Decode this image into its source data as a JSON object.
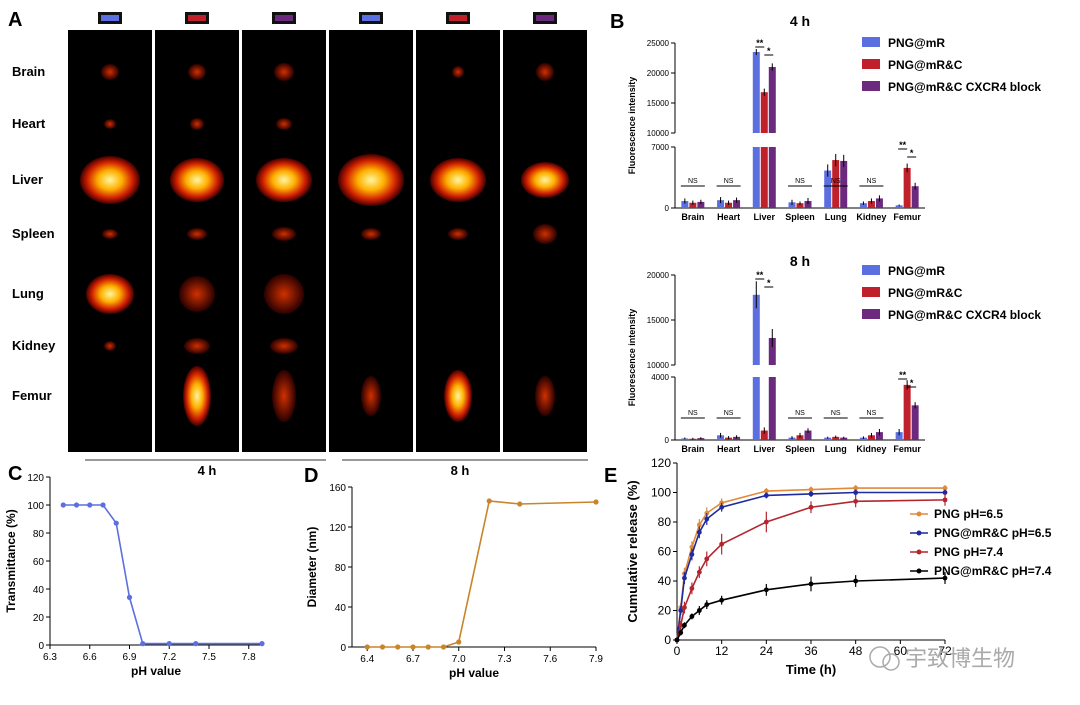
{
  "panel_letters": {
    "a": "A",
    "b": "B",
    "c": "C",
    "d": "D",
    "e": "E"
  },
  "organs": [
    "Brain",
    "Heart",
    "Liver",
    "Spleen",
    "Lung",
    "Kidney",
    "Femur"
  ],
  "colors": {
    "blue": "#5b6fe0",
    "red": "#c0202a",
    "purple": "#6b2a7d",
    "orange": "#e08a3a",
    "navy": "#1f2a9e",
    "darkred": "#b3262e",
    "black": "#000000",
    "lineC": "#5b6fe0",
    "lineD": "#c8852a"
  },
  "panel_a": {
    "timepoints": [
      "4 h",
      "8 h"
    ],
    "column_markers": [
      "blue",
      "red",
      "purple",
      "blue",
      "red",
      "purple"
    ]
  },
  "watermark": {
    "text": "宇致博生物"
  },
  "chart_data": [
    {
      "id": "B-4h",
      "type": "bar",
      "title": "4 h",
      "ylabel": "Fluorescence intensity",
      "categories": [
        "Brain",
        "Heart",
        "Liver",
        "Spleen",
        "Lung",
        "Kidney",
        "Femur"
      ],
      "broken_axis": {
        "lower": [
          0,
          7000
        ],
        "upper": [
          10000,
          25000
        ]
      },
      "yticks_lower": [
        "0",
        "7000"
      ],
      "yticks_upper": [
        "10000",
        "15000",
        "20000",
        "25000"
      ],
      "series": [
        {
          "name": "PNG@mR",
          "color": "#5b6fe0",
          "values": [
            800,
            900,
            23500,
            650,
            4300,
            550,
            300
          ],
          "errors": [
            300,
            350,
            500,
            300,
            700,
            200,
            100
          ]
        },
        {
          "name": "PNG@mR&C",
          "color": "#c0202a",
          "values": [
            600,
            600,
            16800,
            550,
            5500,
            800,
            4600
          ],
          "errors": [
            250,
            250,
            600,
            200,
            700,
            300,
            500
          ]
        },
        {
          "name": "PNG@mR&C CXCR4 block",
          "color": "#6b2a7d",
          "values": [
            700,
            900,
            21000,
            800,
            5400,
            1100,
            2500
          ],
          "errors": [
            250,
            300,
            600,
            350,
            700,
            350,
            400
          ]
        }
      ],
      "significance": [
        {
          "group": "Brain",
          "label": "NS"
        },
        {
          "group": "Heart",
          "label": "NS"
        },
        {
          "group": "Liver",
          "label": "**"
        },
        {
          "group": "Liver",
          "label": "*"
        },
        {
          "group": "Spleen",
          "label": "NS"
        },
        {
          "group": "Lung",
          "label": "NS"
        },
        {
          "group": "Kidney",
          "label": "NS"
        },
        {
          "group": "Femur",
          "label": "**"
        },
        {
          "group": "Femur",
          "label": "*"
        }
      ]
    },
    {
      "id": "B-8h",
      "type": "bar",
      "title": "8 h",
      "ylabel": "Fluorescence intensity",
      "categories": [
        "Brain",
        "Heart",
        "Liver",
        "Spleen",
        "Lung",
        "Kidney",
        "Femur"
      ],
      "broken_axis": {
        "lower": [
          0,
          4000
        ],
        "upper": [
          10000,
          20000
        ]
      },
      "yticks_lower": [
        "0",
        "4000"
      ],
      "yticks_upper": [
        "10000",
        "15000",
        "20000"
      ],
      "series": [
        {
          "name": "PNG@mR",
          "color": "#5b6fe0",
          "values": [
            100,
            300,
            17800,
            150,
            150,
            150,
            500
          ],
          "errors": [
            60,
            150,
            1500,
            100,
            60,
            80,
            200
          ]
        },
        {
          "name": "PNG@mR&C",
          "color": "#c0202a",
          "values": [
            80,
            150,
            600,
            300,
            200,
            300,
            3500
          ],
          "errors": [
            60,
            100,
            200,
            150,
            80,
            150,
            300
          ]
        },
        {
          "name": "PNG@mR&C CXCR4 block",
          "color": "#6b2a7d",
          "values": [
            120,
            200,
            13000,
            600,
            150,
            500,
            2200
          ],
          "errors": [
            60,
            100,
            1000,
            150,
            60,
            200,
            200
          ]
        }
      ],
      "significance": [
        {
          "group": "Brain",
          "label": "NS"
        },
        {
          "group": "Heart",
          "label": "NS"
        },
        {
          "group": "Liver",
          "label": "**"
        },
        {
          "group": "Liver",
          "label": "*"
        },
        {
          "group": "Spleen",
          "label": "NS"
        },
        {
          "group": "Lung",
          "label": "NS"
        },
        {
          "group": "Kidney",
          "label": "NS"
        },
        {
          "group": "Femur",
          "label": "**"
        },
        {
          "group": "Femur",
          "label": "*"
        }
      ]
    },
    {
      "id": "C",
      "type": "line",
      "xlabel": "pH value",
      "ylabel": "Transmittance (%)",
      "xlim": [
        6.3,
        7.9
      ],
      "ylim": [
        0,
        120
      ],
      "xticks": [
        "6.3",
        "6.6",
        "6.9",
        "7.2",
        "7.5",
        "7.8"
      ],
      "yticks": [
        "0",
        "20",
        "40",
        "60",
        "80",
        "100",
        "120"
      ],
      "series": [
        {
          "color": "#5b6fe0",
          "x": [
            6.4,
            6.5,
            6.6,
            6.7,
            6.8,
            6.9,
            7.0,
            7.2,
            7.4,
            7.9
          ],
          "y": [
            100,
            100,
            100,
            100,
            87,
            34,
            1,
            1,
            1,
            1
          ]
        }
      ]
    },
    {
      "id": "D",
      "type": "line",
      "xlabel": "pH value",
      "ylabel": "Diameter (nm)",
      "xlim": [
        6.3,
        7.9
      ],
      "ylim": [
        0,
        160
      ],
      "xticks": [
        "6.4",
        "6.7",
        "7.0",
        "7.3",
        "7.6",
        "7.9"
      ],
      "yticks": [
        "0",
        "40",
        "80",
        "120",
        "160"
      ],
      "series": [
        {
          "color": "#c8852a",
          "x": [
            6.4,
            6.5,
            6.6,
            6.7,
            6.8,
            6.9,
            7.0,
            7.2,
            7.4,
            7.9
          ],
          "y": [
            0,
            0,
            0,
            0,
            0,
            0,
            5,
            146,
            143,
            145
          ]
        }
      ]
    },
    {
      "id": "E",
      "type": "line",
      "xlabel": "Time (h)",
      "ylabel": "Cumulative release (%)",
      "xlim": [
        0,
        72
      ],
      "ylim": [
        0,
        120
      ],
      "xticks": [
        "0",
        "12",
        "24",
        "36",
        "48",
        "60",
        "72"
      ],
      "yticks": [
        "0",
        "20",
        "40",
        "60",
        "80",
        "100",
        "120"
      ],
      "series": [
        {
          "name": "PNG pH=6.5",
          "color": "#e08a3a",
          "x": [
            0,
            1,
            2,
            4,
            6,
            8,
            12,
            24,
            36,
            48,
            72
          ],
          "y": [
            0,
            22,
            45,
            63,
            78,
            86,
            93,
            101,
            102,
            103,
            103
          ],
          "err": [
            0,
            3,
            4,
            4,
            4,
            4,
            3,
            2,
            2,
            2,
            2
          ]
        },
        {
          "name": "PNG@mR&C pH=6.5",
          "color": "#1f2a9e",
          "x": [
            0,
            1,
            2,
            4,
            6,
            8,
            12,
            24,
            36,
            48,
            72
          ],
          "y": [
            0,
            20,
            42,
            58,
            73,
            82,
            90,
            98,
            99,
            100,
            100
          ],
          "err": [
            0,
            3,
            4,
            4,
            4,
            4,
            3,
            2,
            2,
            2,
            2
          ]
        },
        {
          "name": "PNG pH=7.4",
          "color": "#b3262e",
          "x": [
            0,
            1,
            2,
            4,
            6,
            8,
            12,
            24,
            36,
            48,
            72
          ],
          "y": [
            0,
            10,
            22,
            35,
            46,
            55,
            65,
            80,
            90,
            94,
            95
          ],
          "err": [
            0,
            3,
            4,
            4,
            4,
            5,
            7,
            7,
            4,
            4,
            4
          ]
        },
        {
          "name": "PNG@mR&C pH=7.4",
          "color": "#000000",
          "x": [
            0,
            1,
            2,
            4,
            6,
            8,
            12,
            24,
            36,
            48,
            72
          ],
          "y": [
            0,
            5,
            10,
            16,
            20,
            24,
            27,
            34,
            38,
            40,
            42
          ],
          "err": [
            0,
            2,
            2,
            2,
            3,
            3,
            3,
            4,
            5,
            4,
            4
          ]
        }
      ]
    }
  ]
}
